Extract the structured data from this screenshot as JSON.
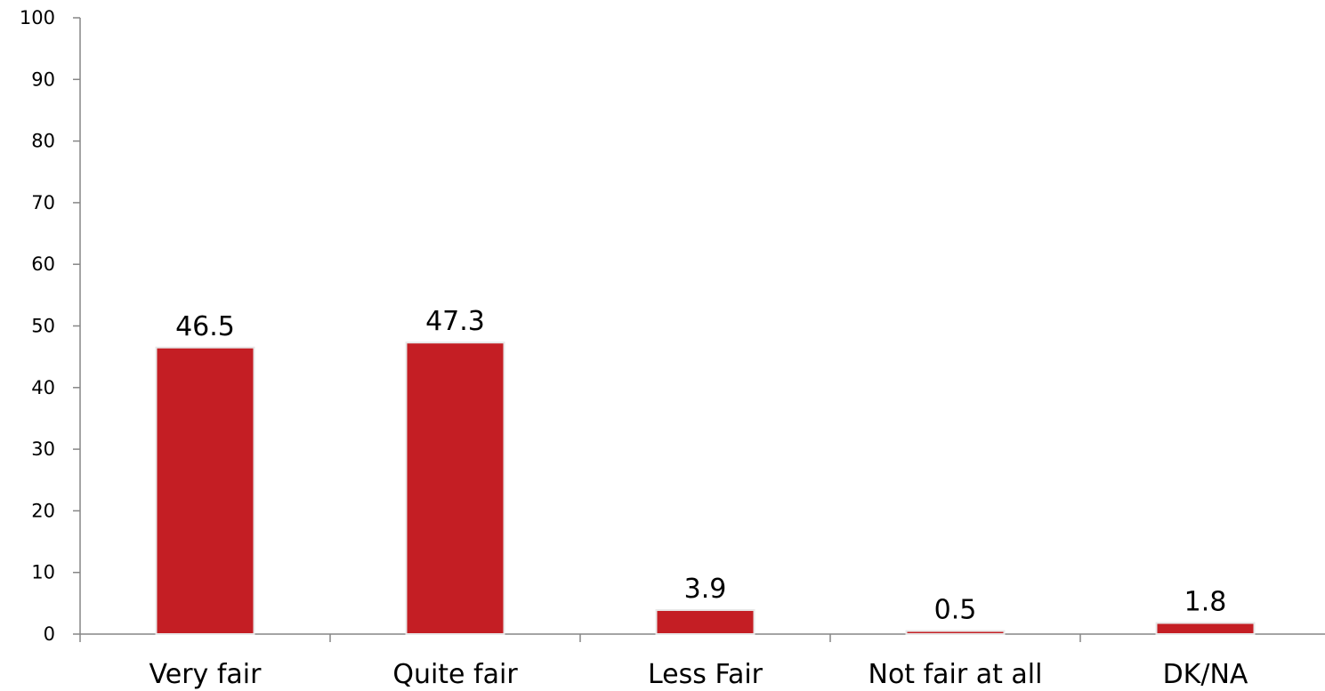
{
  "chart_data": {
    "type": "bar",
    "title": "",
    "xlabel": "",
    "ylabel": "",
    "categories": [
      "Very fair",
      "Quite fair",
      "Less Fair",
      "Not fair at all",
      "DK/NA"
    ],
    "values": [
      46.5,
      47.3,
      3.9,
      0.5,
      1.8
    ],
    "value_labels": [
      "46.5",
      "47.3",
      "3.9",
      "0.5",
      "1.8"
    ],
    "ylim": [
      0,
      100
    ],
    "yticks": [
      0,
      10,
      20,
      30,
      40,
      50,
      60,
      70,
      80,
      90,
      100
    ],
    "ytick_labels": [
      "0",
      "10",
      "20",
      "30",
      "40",
      "50",
      "60",
      "70",
      "80",
      "90",
      "100"
    ],
    "grid": false,
    "legend": "none",
    "bar_color": "#C41E24"
  }
}
